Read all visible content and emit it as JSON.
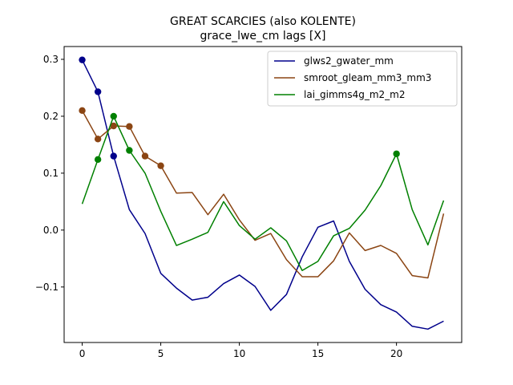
{
  "chart_data": {
    "type": "line",
    "title": "GREAT SCARCIES (also KOLENTE)",
    "subtitle": "grace_lwe_cm lags [X]",
    "xlabel": "",
    "ylabel": "",
    "xlim": [
      -1.15,
      24.15
    ],
    "ylim": [
      -0.1975,
      0.3225
    ],
    "xticks": [
      0,
      5,
      10,
      15,
      20
    ],
    "yticks": [
      -0.1,
      0.0,
      0.1,
      0.2,
      0.3
    ],
    "ytick_labels": [
      "−0.1",
      "0.0",
      "0.1",
      "0.2",
      "0.3"
    ],
    "grid": false,
    "legend_position": "top-right",
    "x": [
      0,
      1,
      2,
      3,
      4,
      5,
      6,
      7,
      8,
      9,
      10,
      11,
      12,
      13,
      14,
      15,
      16,
      17,
      18,
      19,
      20,
      21,
      22,
      23
    ],
    "series": [
      {
        "name": "glws2_gwater_mm",
        "color": "#00008b",
        "values": [
          0.299,
          0.243,
          0.13,
          0.036,
          -0.006,
          -0.076,
          -0.102,
          -0.123,
          -0.118,
          -0.094,
          -0.079,
          -0.099,
          -0.141,
          -0.113,
          -0.047,
          0.005,
          0.016,
          -0.055,
          -0.104,
          -0.131,
          -0.144,
          -0.169,
          -0.174,
          -0.16
        ],
        "markers": [
          0,
          1,
          2
        ]
      },
      {
        "name": "smroot_gleam_mm3_mm3",
        "color": "#8b4513",
        "values": [
          0.21,
          0.16,
          0.183,
          0.182,
          0.13,
          0.113,
          0.065,
          0.066,
          0.027,
          0.063,
          0.018,
          -0.018,
          -0.006,
          -0.052,
          -0.082,
          -0.082,
          -0.054,
          -0.005,
          -0.036,
          -0.027,
          -0.041,
          -0.08,
          -0.084,
          0.029
        ],
        "markers": [
          0,
          1,
          2,
          3,
          4,
          5
        ]
      },
      {
        "name": "lai_gimms4g_m2_m2",
        "color": "#008000",
        "values": [
          0.046,
          0.124,
          0.2,
          0.14,
          0.1,
          0.033,
          -0.027,
          -0.016,
          -0.004,
          0.05,
          0.008,
          -0.016,
          0.004,
          -0.019,
          -0.071,
          -0.055,
          -0.01,
          0.003,
          0.035,
          0.078,
          0.134,
          0.036,
          -0.026,
          0.052
        ],
        "markers": [
          1,
          2,
          3,
          20
        ]
      }
    ]
  }
}
